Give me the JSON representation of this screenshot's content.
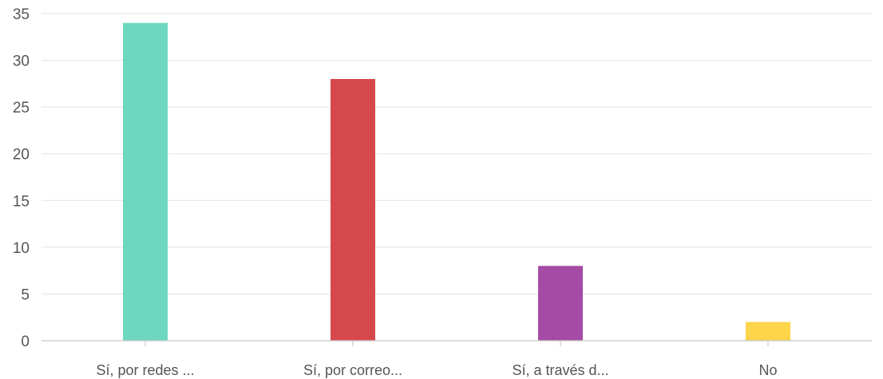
{
  "chart_data": {
    "type": "bar",
    "categories": [
      "Sí, por redes ...",
      "Sí, por correo...",
      "Sí, a través d...",
      "No"
    ],
    "values": [
      34,
      28,
      8,
      2
    ],
    "colors": [
      "#6ed7bf",
      "#d5494d",
      "#a54ba5",
      "#fdd44a"
    ],
    "title": "",
    "xlabel": "",
    "ylabel": "",
    "ylim": [
      0,
      35
    ],
    "yticks": [
      0,
      5,
      10,
      15,
      20,
      25,
      30,
      35
    ],
    "grid": true,
    "legend": "none"
  }
}
